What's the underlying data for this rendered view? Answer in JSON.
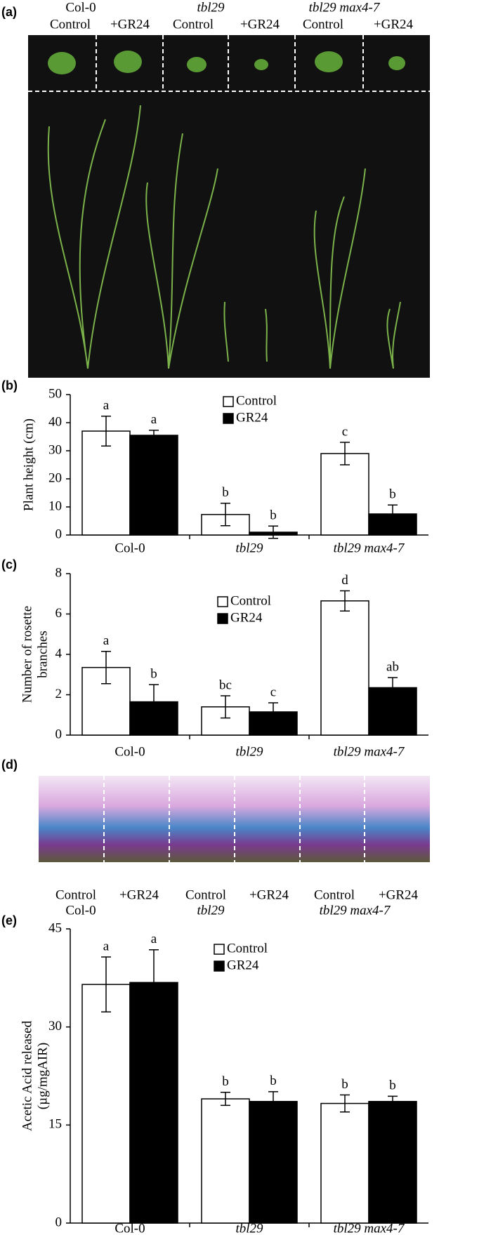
{
  "panel_labels": [
    "(a)",
    "(b)",
    "(c)",
    "(d)",
    "(e)"
  ],
  "photo_a": {
    "groups": [
      {
        "name": "Col-0",
        "treatments": [
          "Control",
          "+GR24"
        ]
      },
      {
        "name": "tbl29",
        "treatments": [
          "Control",
          "+GR24"
        ]
      },
      {
        "name": "tbl29 max4-7",
        "treatments": [
          "Control",
          "+GR24"
        ]
      }
    ]
  },
  "photo_d": {
    "groups": [
      {
        "name": "Col-0",
        "treatments": [
          "Control",
          "+GR24"
        ]
      },
      {
        "name": "tbl29",
        "treatments": [
          "Control",
          "+GR24"
        ]
      },
      {
        "name": "tbl29 max4-7",
        "treatments": [
          "Control",
          "+GR24"
        ]
      }
    ]
  },
  "chart_data": [
    {
      "type": "bar",
      "ylabel": [
        "Plant height (cm)"
      ],
      "categories": [
        "Col-0",
        "tbl29",
        "tbl29 max4-7"
      ],
      "ylim": [
        0,
        50
      ],
      "yticks": [
        0,
        10,
        20,
        30,
        40,
        50
      ],
      "series": [
        {
          "name": "Control",
          "color": "#ffffff",
          "values": [
            37,
            7.3,
            29
          ],
          "errors": [
            5.3,
            4,
            4
          ],
          "significance": [
            "a",
            "b",
            "c"
          ]
        },
        {
          "name": "GR24",
          "color": "#000000",
          "values": [
            35.5,
            1,
            7.5
          ],
          "errors": [
            1.8,
            2.2,
            3.2
          ],
          "significance": [
            "a",
            "b",
            "b"
          ]
        }
      ]
    },
    {
      "type": "bar",
      "ylabel": [
        "Number of rosette",
        "branches"
      ],
      "categories": [
        "Col-0",
        "tbl29",
        "tbl29 max4-7"
      ],
      "ylim": [
        0,
        8
      ],
      "yticks": [
        0,
        2,
        4,
        6,
        8
      ],
      "series": [
        {
          "name": "Control",
          "color": "#ffffff",
          "values": [
            3.35,
            1.4,
            6.65
          ],
          "errors": [
            0.8,
            0.55,
            0.5
          ],
          "significance": [
            "a",
            "bc",
            "d"
          ]
        },
        {
          "name": "GR24",
          "color": "#000000",
          "values": [
            1.65,
            1.15,
            2.35
          ],
          "errors": [
            0.85,
            0.45,
            0.5
          ],
          "significance": [
            "b",
            "c",
            "ab"
          ]
        }
      ]
    },
    {
      "type": "bar",
      "ylabel": [
        "Acetic Acid released",
        "(µg/mgAIR)"
      ],
      "categories": [
        "Col-0",
        "tbl29",
        "tbl29 max4-7"
      ],
      "ylim": [
        0,
        45
      ],
      "yticks": [
        0,
        15,
        30,
        45
      ],
      "series": [
        {
          "name": "Control",
          "color": "#ffffff",
          "values": [
            36.5,
            19,
            18.3
          ],
          "errors": [
            4.2,
            1,
            1.3
          ],
          "significance": [
            "a",
            "b",
            "b"
          ]
        },
        {
          "name": "GR24",
          "color": "#000000",
          "values": [
            36.8,
            18.6,
            18.6
          ],
          "errors": [
            5,
            1.5,
            0.8
          ],
          "significance": [
            "a",
            "b",
            "b"
          ]
        }
      ]
    }
  ]
}
